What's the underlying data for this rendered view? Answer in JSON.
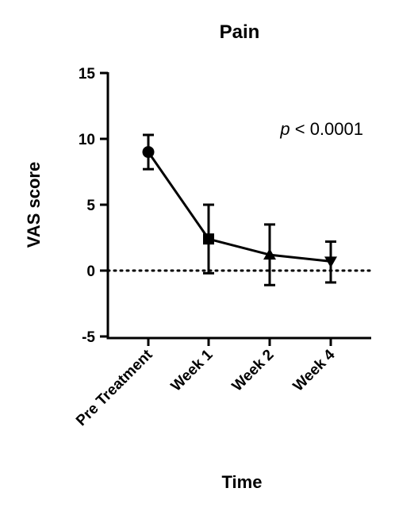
{
  "chart_data": {
    "type": "line",
    "title": "Pain",
    "xlabel": "Time",
    "ylabel": "VAS score",
    "categories": [
      "Pre Treatment",
      "Week 1",
      "Week 2",
      "Week 4"
    ],
    "series": [
      {
        "values": [
          9.0,
          2.4,
          1.2,
          0.7
        ],
        "error_upper": [
          10.3,
          5.0,
          3.5,
          2.2
        ],
        "error_lower": [
          7.7,
          -0.2,
          -1.1,
          -0.9
        ],
        "markers": [
          "circle",
          "square",
          "triangle-up",
          "triangle-down"
        ],
        "color": "#000000"
      }
    ],
    "ylim": [
      -5,
      15
    ],
    "yticks": [
      "-5",
      "0",
      "5",
      "10",
      "15"
    ],
    "reference_line": {
      "y": 0,
      "style": "dotted"
    },
    "annotation": {
      "italic_part": "p",
      "rest": " < 0.0001"
    },
    "grid": false,
    "legend": "none"
  }
}
